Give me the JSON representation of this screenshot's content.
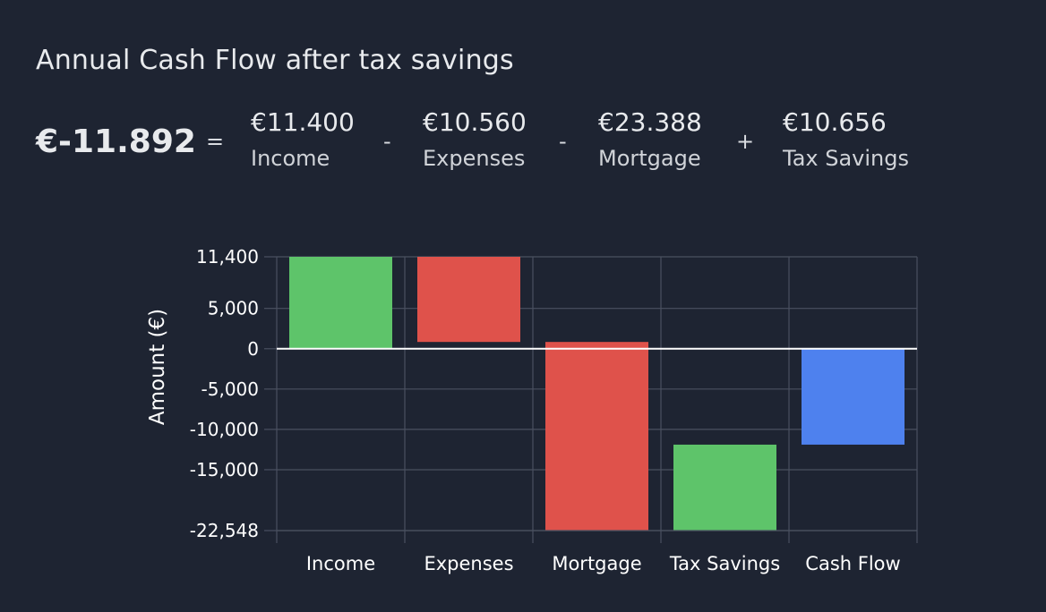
{
  "header": {
    "title": "Annual Cash Flow after tax savings"
  },
  "equation": {
    "total": "€-11.892",
    "equals": "=",
    "terms": [
      {
        "value": "€11.400",
        "label": "Income"
      },
      {
        "op": "-",
        "value": "€10.560",
        "label": "Expenses"
      },
      {
        "op": "-",
        "value": "€23.388",
        "label": "Mortgage"
      },
      {
        "op": "+",
        "value": "€10.656",
        "label": "Tax Savings"
      }
    ]
  },
  "chart_data": {
    "type": "bar",
    "subtype": "waterfall",
    "ylabel": "Amount (€)",
    "ylim": [
      -22548,
      11400
    ],
    "yticks": [
      {
        "value": 11400,
        "label": "11,400"
      },
      {
        "value": 5000,
        "label": "5,000"
      },
      {
        "value": 0,
        "label": "0"
      },
      {
        "value": -5000,
        "label": "-5,000"
      },
      {
        "value": -10000,
        "label": "-10,000"
      },
      {
        "value": -15000,
        "label": "-15,000"
      },
      {
        "value": -22548,
        "label": "-22,548"
      }
    ],
    "categories": [
      "Income",
      "Expenses",
      "Mortgage",
      "Tax Savings",
      "Cash Flow"
    ],
    "bars": [
      {
        "category": "Income",
        "start": 0,
        "end": 11400,
        "color": "#5ec46a"
      },
      {
        "category": "Expenses",
        "start": 11400,
        "end": 840,
        "color": "#df524b"
      },
      {
        "category": "Mortgage",
        "start": 840,
        "end": -22548,
        "color": "#df524b"
      },
      {
        "category": "Tax Savings",
        "start": -22548,
        "end": -11892,
        "color": "#5ec46a"
      },
      {
        "category": "Cash Flow",
        "start": 0,
        "end": -11892,
        "color": "#4e81ee"
      }
    ],
    "grid": true,
    "colors": {
      "positive": "#5ec46a",
      "negative": "#df524b",
      "total": "#4e81ee"
    }
  }
}
